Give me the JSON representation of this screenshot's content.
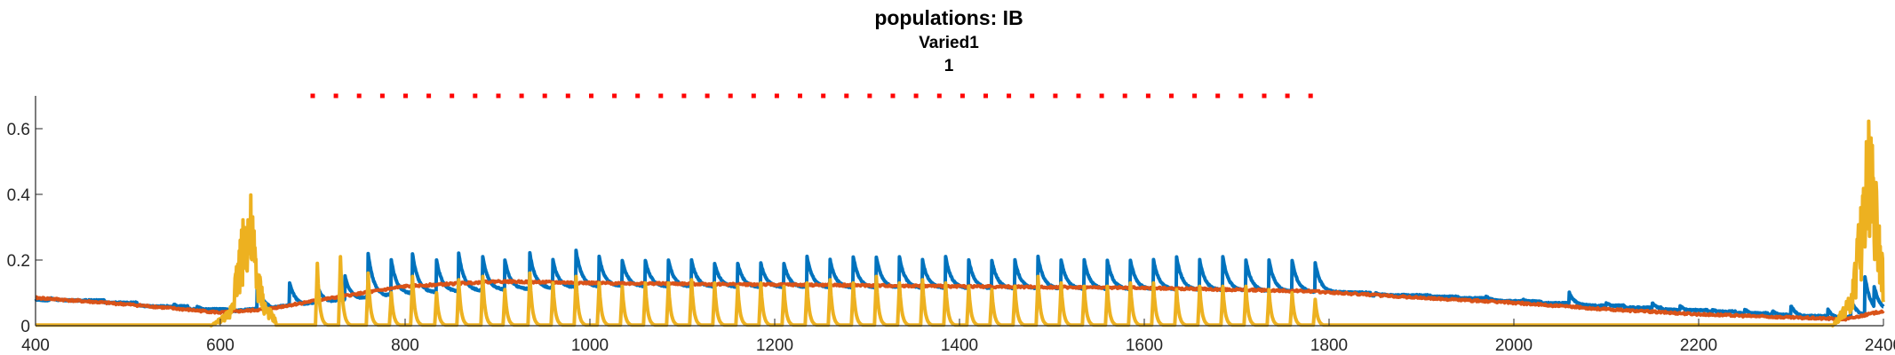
{
  "chart_data": {
    "type": "line",
    "title": "populations: IB",
    "subtitle_lines": [
      "Varied1",
      "1"
    ],
    "xlabel": "",
    "ylabel": "",
    "xlim": [
      400,
      2400
    ],
    "ylim": [
      0,
      0.7
    ],
    "x_ticks": [
      400,
      600,
      800,
      1000,
      1200,
      1400,
      1600,
      1800,
      2000,
      2200,
      2400
    ],
    "y_ticks": [
      0,
      0.2,
      0.4,
      0.6
    ],
    "y_tick_labels": [
      "0",
      "0.2",
      "0.4",
      "0.6"
    ],
    "grid": false,
    "legend": "none",
    "series": [
      {
        "color": "#0072BD",
        "baseline": [
          [
            400,
            0.08
          ],
          [
            600,
            0.04
          ],
          [
            800,
            0.1
          ],
          [
            1000,
            0.12
          ],
          [
            1600,
            0.11
          ],
          [
            1800,
            0.1
          ],
          [
            2000,
            0.07
          ],
          [
            2200,
            0.04
          ],
          [
            2350,
            0.02
          ],
          [
            2400,
            0.05
          ]
        ],
        "spikes": [
          [
            415,
            0.085
          ],
          [
            450,
            0.075
          ],
          [
            505,
            0.07
          ],
          [
            550,
            0.065
          ],
          [
            575,
            0.06
          ],
          [
            640,
            0.13
          ],
          [
            675,
            0.13
          ],
          [
            705,
            0.12
          ],
          [
            735,
            0.15
          ],
          [
            760,
            0.22
          ],
          [
            785,
            0.2
          ],
          [
            808,
            0.22
          ],
          [
            834,
            0.2
          ],
          [
            858,
            0.22
          ],
          [
            884,
            0.21
          ],
          [
            908,
            0.2
          ],
          [
            935,
            0.22
          ],
          [
            960,
            0.2
          ],
          [
            985,
            0.23
          ],
          [
            1010,
            0.21
          ],
          [
            1035,
            0.2
          ],
          [
            1060,
            0.2
          ],
          [
            1085,
            0.2
          ],
          [
            1110,
            0.2
          ],
          [
            1135,
            0.19
          ],
          [
            1160,
            0.19
          ],
          [
            1185,
            0.19
          ],
          [
            1210,
            0.19
          ],
          [
            1235,
            0.21
          ],
          [
            1260,
            0.2
          ],
          [
            1285,
            0.21
          ],
          [
            1310,
            0.21
          ],
          [
            1335,
            0.21
          ],
          [
            1360,
            0.2
          ],
          [
            1385,
            0.21
          ],
          [
            1410,
            0.2
          ],
          [
            1435,
            0.2
          ],
          [
            1460,
            0.2
          ],
          [
            1485,
            0.21
          ],
          [
            1510,
            0.2
          ],
          [
            1535,
            0.2
          ],
          [
            1560,
            0.2
          ],
          [
            1585,
            0.2
          ],
          [
            1610,
            0.2
          ],
          [
            1635,
            0.21
          ],
          [
            1660,
            0.2
          ],
          [
            1685,
            0.21
          ],
          [
            1710,
            0.2
          ],
          [
            1735,
            0.2
          ],
          [
            1760,
            0.2
          ],
          [
            1785,
            0.19
          ],
          [
            1850,
            0.1
          ],
          [
            1880,
            0.095
          ],
          [
            1910,
            0.09
          ],
          [
            1970,
            0.09
          ],
          [
            2010,
            0.08
          ],
          [
            2060,
            0.1
          ],
          [
            2100,
            0.07
          ],
          [
            2150,
            0.07
          ],
          [
            2180,
            0.06
          ],
          [
            2215,
            0.05
          ],
          [
            2250,
            0.05
          ],
          [
            2280,
            0.045
          ],
          [
            2300,
            0.06
          ],
          [
            2340,
            0.05
          ],
          [
            2365,
            0.08
          ],
          [
            2380,
            0.15
          ],
          [
            2390,
            0.12
          ]
        ]
      },
      {
        "color": "#D95319",
        "values": [
          [
            400,
            0.085
          ],
          [
            500,
            0.065
          ],
          [
            600,
            0.04
          ],
          [
            650,
            0.05
          ],
          [
            700,
            0.075
          ],
          [
            800,
            0.12
          ],
          [
            900,
            0.135
          ],
          [
            1000,
            0.13
          ],
          [
            1200,
            0.125
          ],
          [
            1400,
            0.12
          ],
          [
            1600,
            0.115
          ],
          [
            1780,
            0.105
          ],
          [
            1900,
            0.085
          ],
          [
            2000,
            0.07
          ],
          [
            2100,
            0.05
          ],
          [
            2200,
            0.035
          ],
          [
            2300,
            0.025
          ],
          [
            2360,
            0.02
          ],
          [
            2400,
            0.045
          ]
        ]
      },
      {
        "color": "#EDB120",
        "burst_1": [
          [
            590,
            0
          ],
          [
            610,
            0.05
          ],
          [
            625,
            0.35
          ],
          [
            632,
            0.43
          ],
          [
            640,
            0.2
          ],
          [
            648,
            0.08
          ],
          [
            660,
            0.02
          ]
        ],
        "burst_2": [
          [
            2345,
            0
          ],
          [
            2365,
            0.1
          ],
          [
            2378,
            0.45
          ],
          [
            2385,
            0.68
          ],
          [
            2392,
            0.5
          ],
          [
            2400,
            0.2
          ]
        ],
        "spikes": [
          [
            705,
            0.19
          ],
          [
            730,
            0.21
          ],
          [
            760,
            0.16
          ],
          [
            785,
            0.1
          ],
          [
            808,
            0.15
          ],
          [
            834,
            0.1
          ],
          [
            858,
            0.14
          ],
          [
            884,
            0.15
          ],
          [
            908,
            0.11
          ],
          [
            935,
            0.16
          ],
          [
            960,
            0.13
          ],
          [
            985,
            0.15
          ],
          [
            1010,
            0.13
          ],
          [
            1035,
            0.12
          ],
          [
            1060,
            0.13
          ],
          [
            1085,
            0.13
          ],
          [
            1110,
            0.14
          ],
          [
            1135,
            0.13
          ],
          [
            1160,
            0.12
          ],
          [
            1185,
            0.13
          ],
          [
            1210,
            0.12
          ],
          [
            1235,
            0.13
          ],
          [
            1260,
            0.14
          ],
          [
            1285,
            0.13
          ],
          [
            1310,
            0.15
          ],
          [
            1335,
            0.13
          ],
          [
            1360,
            0.14
          ],
          [
            1385,
            0.13
          ],
          [
            1410,
            0.12
          ],
          [
            1435,
            0.11
          ],
          [
            1460,
            0.12
          ],
          [
            1485,
            0.15
          ],
          [
            1510,
            0.13
          ],
          [
            1535,
            0.12
          ],
          [
            1560,
            0.12
          ],
          [
            1585,
            0.13
          ],
          [
            1610,
            0.13
          ],
          [
            1635,
            0.11
          ],
          [
            1660,
            0.12
          ],
          [
            1685,
            0.12
          ],
          [
            1710,
            0.12
          ],
          [
            1735,
            0.11
          ],
          [
            1760,
            0.1
          ],
          [
            1785,
            0.08
          ]
        ]
      },
      {
        "color": "#FF0000",
        "type": "dotted-marker-line",
        "x_start": 700,
        "x_end": 1780,
        "y": 0.7
      }
    ]
  }
}
